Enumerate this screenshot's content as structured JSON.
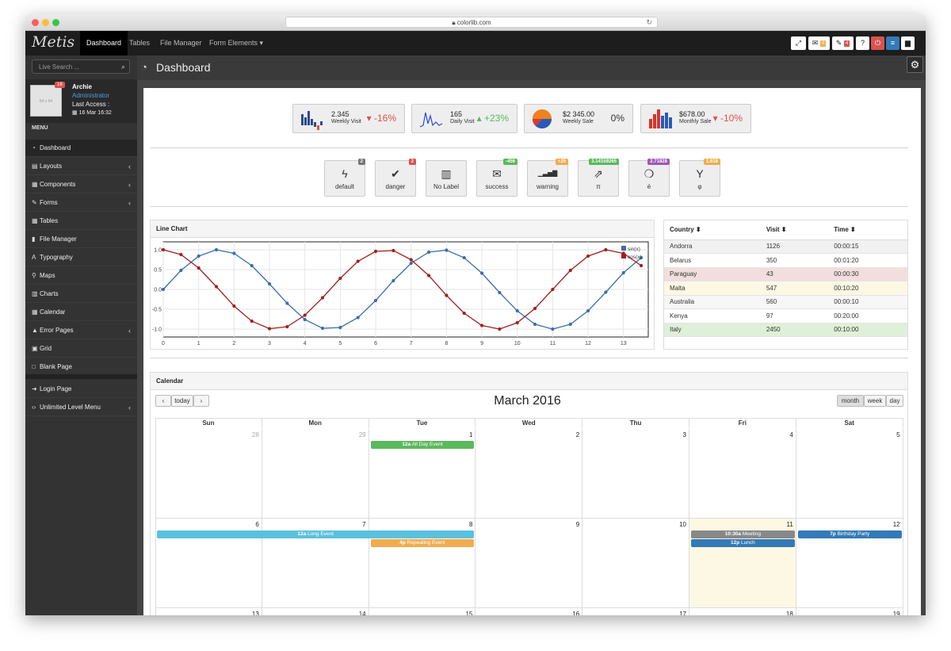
{
  "browser": {
    "url": "colorlib.com",
    "reload_icon": "reload-icon"
  },
  "topbar": {
    "logo": "Metis",
    "nav": [
      "Dashboard",
      "Tables",
      "File Manager",
      "Form Elements ▾"
    ],
    "mail_count": "8",
    "comments_count": "4",
    "help": "?"
  },
  "sidebar": {
    "search_placeholder": "Live Search ...",
    "user": {
      "name": "Archie",
      "role": "Administrator",
      "last_access_label": "Last Access :",
      "last_access": "16 Mar 16:32",
      "badge": "16",
      "avatar_text": "64 x 64"
    },
    "menu_title": "MENU",
    "items": [
      {
        "label": "Dashboard",
        "icon": "dashboard-icon"
      },
      {
        "label": "Layouts",
        "icon": "layout-icon"
      },
      {
        "label": "Components",
        "icon": "components-icon"
      },
      {
        "label": "Forms",
        "icon": "pencil-icon"
      },
      {
        "label": "Tables",
        "icon": "table-icon"
      },
      {
        "label": "File Manager",
        "icon": "file-icon"
      },
      {
        "label": "Typography",
        "icon": "font-icon"
      },
      {
        "label": "Maps",
        "icon": "map-marker-icon"
      },
      {
        "label": "Charts",
        "icon": "chart-icon"
      },
      {
        "label": "Calendar",
        "icon": "calendar-icon"
      },
      {
        "label": "Error Pages",
        "icon": "warning-icon"
      },
      {
        "label": "Grid",
        "icon": "grid-icon"
      },
      {
        "label": "Blank Page",
        "icon": "square-icon"
      },
      {
        "label": "Login Page",
        "icon": "sign-in-icon"
      },
      {
        "label": "Unlimited Level Menu",
        "icon": "code-icon"
      }
    ]
  },
  "page": {
    "title": "Dashboard"
  },
  "stats": [
    {
      "value": "2.345",
      "label": "Weekly Visit",
      "change": "▾ -16%",
      "color": "#d9534f"
    },
    {
      "value": "165",
      "label": "Daily Visit",
      "change": "▴ +23%",
      "color": "#5cb85c"
    },
    {
      "value": "$2 345.00",
      "label": "Weekly Sale",
      "change": "0%",
      "color": "#333333"
    },
    {
      "value": "$678.00",
      "label": "Monthly Sale",
      "change": "▾ -10%",
      "color": "#d9534f"
    }
  ],
  "tiles": [
    {
      "label": "default",
      "badge": "2",
      "badge_color": "#777777",
      "icon": "bolt-icon"
    },
    {
      "label": "danger",
      "badge": "2",
      "badge_color": "#d9534f",
      "icon": "check-icon"
    },
    {
      "label": "No Label",
      "badge": "",
      "badge_color": "",
      "icon": "building-icon"
    },
    {
      "label": "success",
      "badge": "-456",
      "badge_color": "#5cb85c",
      "icon": "envelope-icon"
    },
    {
      "label": "warning",
      "badge": "+25",
      "badge_color": "#f0ad4e",
      "icon": "signal-icon"
    },
    {
      "label": "π",
      "badge": "3.14159265",
      "badge_color": "#5cb85c",
      "icon": "external-link-icon"
    },
    {
      "label": "é",
      "badge": "2.71828",
      "badge_color": "#9b59b6",
      "icon": "leaf-icon"
    },
    {
      "label": "φ",
      "badge": "1.618",
      "badge_color": "#f0ad4e",
      "icon": "glass-icon"
    }
  ],
  "line_chart": {
    "title": "Line Chart"
  },
  "chart_data": {
    "type": "line",
    "title": "",
    "xlabel": "",
    "ylabel": "",
    "xlim": [
      0,
      13.7
    ],
    "ylim": [
      -1.2,
      1.2
    ],
    "xticks": [
      "0",
      "1",
      "2",
      "3",
      "4",
      "5",
      "6",
      "7",
      "8",
      "9",
      "10",
      "11",
      "12",
      "13"
    ],
    "yticks": [
      "1.0",
      "0.5",
      "0.0",
      "-0.5",
      "-1.0"
    ],
    "grid": true,
    "legend": "top-right",
    "series": [
      {
        "name": "sin(x)",
        "color": "#3a6fa8",
        "x": [
          0,
          0.5,
          1,
          1.5,
          2,
          2.5,
          3,
          3.5,
          4,
          4.5,
          5,
          5.5,
          6,
          6.5,
          7,
          7.5,
          8,
          8.5,
          9,
          9.5,
          10,
          10.5,
          11,
          11.5,
          12,
          12.5,
          13,
          13.5
        ],
        "y": [
          0,
          0.48,
          0.84,
          1.0,
          0.91,
          0.6,
          0.14,
          -0.35,
          -0.76,
          -0.98,
          -0.96,
          -0.71,
          -0.28,
          0.22,
          0.66,
          0.94,
          0.99,
          0.8,
          0.41,
          -0.08,
          -0.54,
          -0.88,
          -1.0,
          -0.88,
          -0.54,
          -0.07,
          0.42,
          0.8
        ]
      },
      {
        "name": "cos(x)",
        "color": "#a02020",
        "x": [
          0,
          0.5,
          1,
          1.5,
          2,
          2.5,
          3,
          3.5,
          4,
          4.5,
          5,
          5.5,
          6,
          6.5,
          7,
          7.5,
          8,
          8.5,
          9,
          9.5,
          10,
          10.5,
          11,
          11.5,
          12,
          12.5,
          13,
          13.5
        ],
        "y": [
          1.0,
          0.88,
          0.54,
          0.07,
          -0.42,
          -0.8,
          -0.99,
          -0.94,
          -0.65,
          -0.21,
          0.28,
          0.71,
          0.96,
          0.98,
          0.75,
          0.35,
          -0.15,
          -0.6,
          -0.91,
          -1.0,
          -0.84,
          -0.48,
          0.0,
          0.48,
          0.84,
          1.0,
          0.91,
          0.6
        ]
      }
    ]
  },
  "visits_table": {
    "headers": [
      "Country ⬍",
      "Visit ⬍",
      "Time ⬍"
    ],
    "rows": [
      {
        "country": "Andorra",
        "visit": "1126",
        "time": "00:00:15",
        "bg": "#f1f1f1"
      },
      {
        "country": "Belarus",
        "visit": "350",
        "time": "00:01:20",
        "bg": "#ffffff"
      },
      {
        "country": "Paraguay",
        "visit": "43",
        "time": "00:00:30",
        "bg": "#f2dede"
      },
      {
        "country": "Malta",
        "visit": "547",
        "time": "00:10:20",
        "bg": "#fcf8e3"
      },
      {
        "country": "Australia",
        "visit": "560",
        "time": "00:00:10",
        "bg": "#f7f7f7"
      },
      {
        "country": "Kenya",
        "visit": "97",
        "time": "00:20:00",
        "bg": "#ffffff"
      },
      {
        "country": "Italy",
        "visit": "2450",
        "time": "00:10:00",
        "bg": "#dff0d8"
      }
    ]
  },
  "calendar": {
    "box_title": "Calendar",
    "title": "March 2016",
    "prev": "‹",
    "today": "today",
    "next": "›",
    "views": [
      "month",
      "week",
      "day"
    ],
    "days": [
      "Sun",
      "Mon",
      "Tue",
      "Wed",
      "Thu",
      "Fri",
      "Sat"
    ],
    "weeks": [
      [
        "28",
        "29",
        "1",
        "2",
        "3",
        "4",
        "5"
      ],
      [
        "6",
        "7",
        "8",
        "9",
        "10",
        "11",
        "12"
      ],
      [
        "13",
        "14",
        "15",
        "16",
        "17",
        "18",
        "19"
      ]
    ],
    "events": [
      {
        "time": "12a",
        "title": "All Day Event",
        "color": "#5cb85c"
      },
      {
        "time": "12a",
        "title": "Long Event",
        "color": "#5bc0de"
      },
      {
        "time": "4p",
        "title": "Repeating Event",
        "color": "#f0ad4e"
      },
      {
        "time": "10:30a",
        "title": "Meeting",
        "color": "#888888"
      },
      {
        "time": "12p",
        "title": "Lunch",
        "color": "#337ab7"
      },
      {
        "time": "7p",
        "title": "Birthday Party",
        "color": "#337ab7"
      }
    ]
  }
}
